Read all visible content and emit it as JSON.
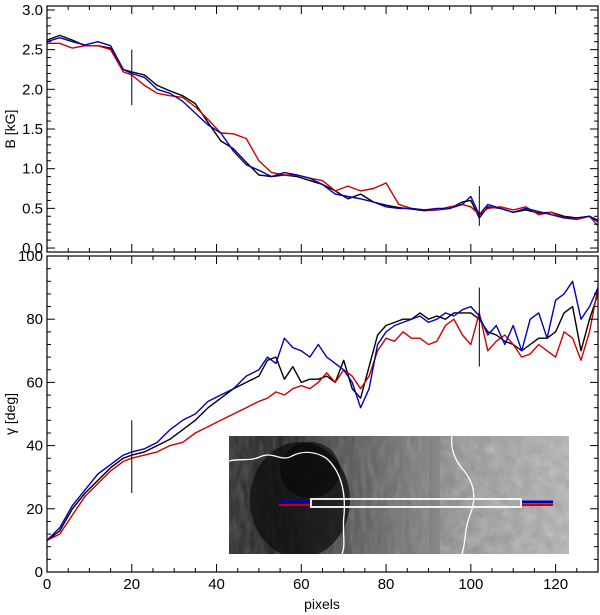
{
  "chart_data": [
    {
      "type": "line",
      "xlabel": "",
      "ylabel": "B [kG]",
      "xlim": [
        0,
        130
      ],
      "ylim": [
        -0.05,
        3.05
      ],
      "xticks": [
        0,
        20,
        40,
        60,
        80,
        100,
        120
      ],
      "yticks": [
        0.0,
        0.5,
        1.0,
        1.5,
        2.0,
        2.5,
        3.0
      ],
      "ytick_labels": [
        "0.0",
        "0.5",
        "1.0",
        "1.5",
        "2.0",
        "2.5",
        "3.0"
      ],
      "markers": [
        {
          "x": 20,
          "y_from": 1.8,
          "y_to": 2.5
        },
        {
          "x": 102,
          "y_from": 0.28,
          "y_to": 0.78
        }
      ],
      "series": [
        {
          "color": "#000000",
          "x": [
            0,
            3,
            6,
            9,
            12,
            15,
            18,
            20,
            23,
            26,
            29,
            32,
            35,
            38,
            41,
            44,
            47,
            50,
            53,
            56,
            59,
            62,
            65,
            68,
            71,
            74,
            77,
            80,
            83,
            86,
            89,
            92,
            95,
            98,
            100,
            102,
            104,
            107,
            110,
            113,
            116,
            119,
            122,
            125,
            128,
            130
          ],
          "y": [
            2.62,
            2.68,
            2.62,
            2.55,
            2.55,
            2.52,
            2.25,
            2.22,
            2.18,
            2.05,
            1.98,
            1.92,
            1.82,
            1.58,
            1.35,
            1.25,
            1.08,
            0.92,
            0.9,
            0.92,
            0.9,
            0.85,
            0.8,
            0.72,
            0.62,
            0.68,
            0.58,
            0.54,
            0.51,
            0.49,
            0.47,
            0.48,
            0.5,
            0.58,
            0.6,
            0.38,
            0.52,
            0.5,
            0.45,
            0.48,
            0.44,
            0.45,
            0.4,
            0.38,
            0.4,
            0.35
          ]
        },
        {
          "color": "#cc0000",
          "x": [
            0,
            3,
            6,
            9,
            12,
            15,
            18,
            20,
            23,
            26,
            29,
            32,
            35,
            38,
            41,
            44,
            47,
            50,
            53,
            56,
            59,
            62,
            65,
            68,
            71,
            74,
            77,
            80,
            83,
            86,
            89,
            92,
            95,
            98,
            100,
            102,
            104,
            107,
            110,
            113,
            116,
            119,
            122,
            125,
            128,
            130
          ],
          "y": [
            2.58,
            2.58,
            2.52,
            2.55,
            2.55,
            2.5,
            2.22,
            2.18,
            2.05,
            1.95,
            1.92,
            1.9,
            1.78,
            1.62,
            1.45,
            1.44,
            1.38,
            1.1,
            0.95,
            0.92,
            0.92,
            0.88,
            0.85,
            0.72,
            0.78,
            0.72,
            0.75,
            0.82,
            0.55,
            0.5,
            0.48,
            0.48,
            0.52,
            0.55,
            0.52,
            0.42,
            0.5,
            0.52,
            0.48,
            0.52,
            0.42,
            0.45,
            0.38,
            0.36,
            0.4,
            0.28
          ]
        },
        {
          "color": "#0000bb",
          "x": [
            0,
            3,
            6,
            9,
            12,
            15,
            18,
            20,
            23,
            26,
            29,
            32,
            35,
            38,
            41,
            44,
            47,
            50,
            53,
            56,
            59,
            62,
            65,
            68,
            71,
            74,
            77,
            80,
            83,
            86,
            89,
            92,
            95,
            98,
            100,
            102,
            104,
            107,
            110,
            113,
            116,
            119,
            122,
            125,
            128,
            130
          ],
          "y": [
            2.6,
            2.65,
            2.6,
            2.56,
            2.6,
            2.55,
            2.25,
            2.2,
            2.15,
            2.0,
            1.95,
            1.85,
            1.7,
            1.55,
            1.45,
            1.22,
            1.05,
            0.98,
            0.9,
            0.95,
            0.92,
            0.88,
            0.8,
            0.68,
            0.65,
            0.62,
            0.58,
            0.52,
            0.5,
            0.5,
            0.48,
            0.5,
            0.5,
            0.55,
            0.65,
            0.42,
            0.55,
            0.5,
            0.45,
            0.5,
            0.46,
            0.42,
            0.38,
            0.38,
            0.4,
            0.33
          ]
        }
      ]
    },
    {
      "type": "line",
      "xlabel": "pixels",
      "ylabel": "γ [deg]",
      "xlim": [
        0,
        130
      ],
      "ylim": [
        0,
        100
      ],
      "xticks": [
        0,
        20,
        40,
        60,
        80,
        100,
        120
      ],
      "yticks": [
        0,
        20,
        40,
        60,
        80,
        100
      ],
      "ytick_labels": [
        "0",
        "20",
        "40",
        "60",
        "80",
        "100"
      ],
      "markers": [
        {
          "x": 20,
          "y_from": 25,
          "y_to": 48
        },
        {
          "x": 102,
          "y_from": 65,
          "y_to": 90
        }
      ],
      "series": [
        {
          "color": "#000000",
          "x": [
            0,
            3,
            6,
            9,
            12,
            15,
            18,
            20,
            23,
            26,
            29,
            32,
            35,
            38,
            41,
            44,
            47,
            50,
            52,
            54,
            56,
            58,
            60,
            62,
            64,
            66,
            68,
            70,
            72,
            74,
            76,
            78,
            80,
            82,
            84,
            86,
            88,
            90,
            92,
            94,
            96,
            98,
            100,
            102,
            104,
            106,
            108,
            110,
            112,
            114,
            116,
            118,
            120,
            122,
            124,
            126,
            128,
            130
          ],
          "y": [
            10,
            13,
            20,
            25,
            29,
            33,
            36,
            37,
            38,
            40,
            42,
            45,
            48,
            52,
            55,
            58,
            60,
            62,
            67,
            68,
            61,
            65,
            60,
            61,
            61,
            62,
            60,
            67,
            58,
            55,
            65,
            75,
            78,
            79,
            80,
            80,
            82,
            80,
            81,
            80,
            82,
            82,
            82,
            80,
            76,
            75,
            73,
            72,
            70,
            72,
            74,
            74,
            76,
            82,
            84,
            70,
            80,
            88
          ]
        },
        {
          "color": "#cc0000",
          "x": [
            0,
            3,
            6,
            9,
            12,
            15,
            18,
            20,
            23,
            26,
            29,
            32,
            35,
            38,
            41,
            44,
            47,
            50,
            52,
            54,
            56,
            58,
            60,
            62,
            64,
            66,
            68,
            70,
            72,
            74,
            76,
            78,
            80,
            82,
            84,
            86,
            88,
            90,
            92,
            94,
            96,
            98,
            100,
            102,
            104,
            106,
            108,
            110,
            112,
            114,
            116,
            118,
            120,
            122,
            124,
            126,
            128,
            130
          ],
          "y": [
            10,
            12,
            18,
            24,
            28,
            32,
            35,
            36,
            37,
            38,
            40,
            41,
            44,
            46,
            48,
            50,
            52,
            54,
            55,
            57,
            56,
            58,
            59,
            58,
            60,
            63,
            60,
            64,
            62,
            58,
            62,
            70,
            74,
            73,
            76,
            74,
            74,
            72,
            73,
            78,
            80,
            75,
            72,
            82,
            70,
            73,
            75,
            72,
            68,
            69,
            72,
            70,
            68,
            76,
            74,
            67,
            76,
            90
          ]
        },
        {
          "color": "#0000bb",
          "x": [
            0,
            3,
            6,
            9,
            12,
            15,
            18,
            20,
            23,
            26,
            29,
            32,
            35,
            38,
            41,
            44,
            47,
            50,
            52,
            54,
            56,
            58,
            60,
            62,
            64,
            66,
            68,
            70,
            72,
            74,
            76,
            78,
            80,
            82,
            84,
            86,
            88,
            90,
            92,
            94,
            96,
            98,
            100,
            102,
            104,
            106,
            108,
            110,
            112,
            114,
            116,
            118,
            120,
            122,
            124,
            126,
            128,
            130
          ],
          "y": [
            10,
            14,
            21,
            26,
            31,
            34,
            37,
            38,
            39,
            41,
            45,
            48,
            50,
            54,
            56,
            58,
            62,
            64,
            68,
            66,
            74,
            71,
            70,
            68,
            72,
            68,
            66,
            64,
            60,
            52,
            58,
            72,
            76,
            78,
            79,
            80,
            81,
            79,
            80,
            82,
            81,
            83,
            84,
            81,
            75,
            78,
            72,
            78,
            70,
            80,
            82,
            74,
            86,
            88,
            92,
            80,
            84,
            90
          ]
        }
      ]
    }
  ]
}
